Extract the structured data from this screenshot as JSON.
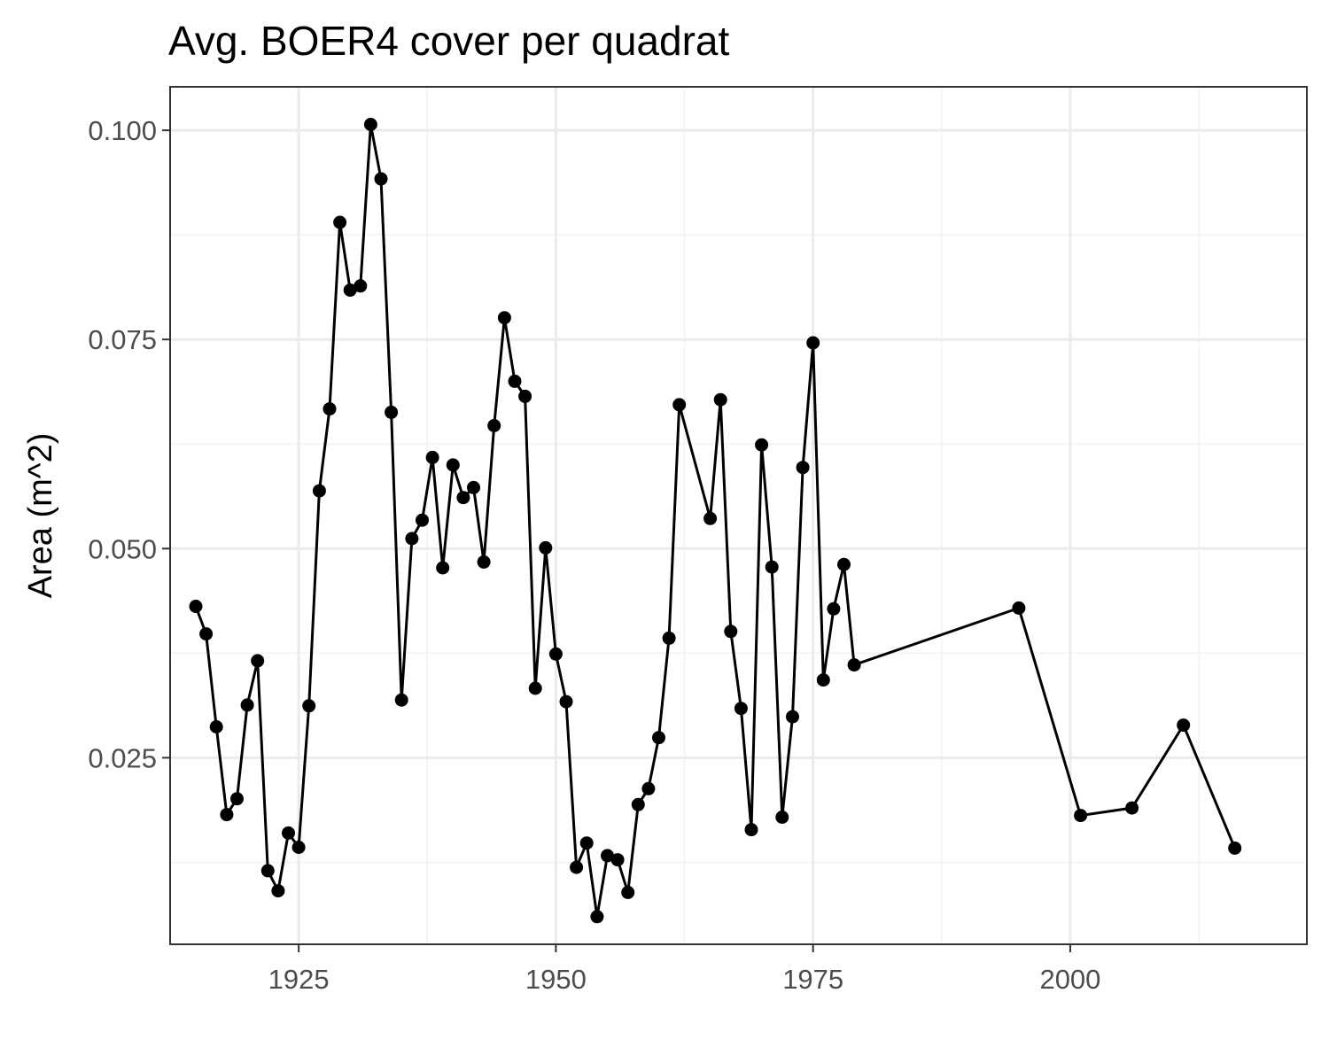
{
  "chart_data": {
    "type": "line",
    "title": "Avg. BOER4 cover per quadrat",
    "xlabel": "",
    "ylabel": "Area (m^2)",
    "xlim": [
      1912.5,
      2023
    ],
    "ylim": [
      0.0027,
      0.1052
    ],
    "x_ticks": [
      1925,
      1950,
      1975,
      2000
    ],
    "x_tick_labels": [
      "1925",
      "1950",
      "1975",
      "2000"
    ],
    "x_minor_ticks": [
      1912.5,
      1937.5,
      1962.5,
      1987.5,
      2012.5
    ],
    "y_ticks": [
      0.025,
      0.05,
      0.075,
      0.1
    ],
    "y_tick_labels": [
      "0.025",
      "0.050",
      "0.075",
      "0.100"
    ],
    "y_minor_ticks": [
      0.0125,
      0.0375,
      0.0625,
      0.0875
    ],
    "grid": true,
    "legend": "none",
    "series_color": "#000000",
    "x": [
      1915,
      1916,
      1917,
      1918,
      1919,
      1920,
      1921,
      1922,
      1923,
      1924,
      1925,
      1926,
      1927,
      1928,
      1929,
      1930,
      1931,
      1932,
      1933,
      1934,
      1935,
      1936,
      1937,
      1938,
      1939,
      1940,
      1941,
      1942,
      1943,
      1944,
      1945,
      1946,
      1947,
      1948,
      1949,
      1950,
      1951,
      1952,
      1953,
      1954,
      1955,
      1956,
      1957,
      1958,
      1959,
      1960,
      1961,
      1962,
      1965,
      1966,
      1967,
      1968,
      1969,
      1970,
      1971,
      1972,
      1973,
      1974,
      1975,
      1976,
      1977,
      1978,
      1979,
      1995,
      2001,
      2006,
      2011,
      2016
    ],
    "y": [
      0.0431,
      0.0398,
      0.0287,
      0.0182,
      0.0201,
      0.0313,
      0.0366,
      0.0115,
      0.0091,
      0.016,
      0.0143,
      0.0312,
      0.0569,
      0.0667,
      0.089,
      0.0809,
      0.0814,
      0.1007,
      0.0942,
      0.0663,
      0.0319,
      0.0512,
      0.0534,
      0.0609,
      0.0477,
      0.06,
      0.0561,
      0.0573,
      0.0484,
      0.0647,
      0.0776,
      0.07,
      0.0682,
      0.0333,
      0.0501,
      0.0374,
      0.0317,
      0.0119,
      0.0148,
      0.006,
      0.0133,
      0.0128,
      0.0089,
      0.0194,
      0.0213,
      0.0274,
      0.0393,
      0.0672,
      0.0536,
      0.0678,
      0.0401,
      0.0309,
      0.0164,
      0.0624,
      0.0478,
      0.0179,
      0.0299,
      0.0597,
      0.0746,
      0.0343,
      0.0428,
      0.0481,
      0.0361,
      0.0429,
      0.0181,
      0.019,
      0.0289,
      0.0142
    ]
  }
}
